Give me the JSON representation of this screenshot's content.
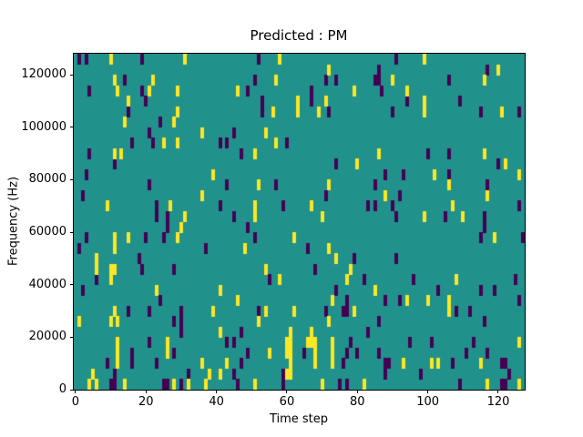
{
  "title": "Predicted : PM",
  "chart_data": {
    "type": "heatmap",
    "title": "Predicted : PM",
    "xlabel": "Time step",
    "ylabel": "Frequency (Hz)",
    "grid_cols": 128,
    "grid_rows": 32,
    "x_range": [
      -0.5,
      127.5
    ],
    "y_range_hz": [
      0,
      128000
    ],
    "x_ticks": [
      0,
      20,
      40,
      60,
      80,
      100,
      120
    ],
    "y_ticks": [
      0,
      20000,
      40000,
      60000,
      80000,
      100000,
      120000
    ],
    "grid_on": false,
    "legend": "none",
    "colors": {
      "mid": "#21918c",
      "low": "#440154",
      "high": "#fde725",
      "spine": "#000000",
      "background": "#ffffff"
    },
    "cell_note": "cells are [col,row] with col 0-127 left-to-right (time step) and row 0-31 top-to-bottom (row 0 = highest 4000 Hz frequency band); all other cells have the mid (teal) value",
    "cells_low": [
      [
        1,
        0
      ],
      [
        3,
        0
      ],
      [
        19,
        0
      ],
      [
        14,
        2
      ],
      [
        4,
        3
      ],
      [
        19,
        3
      ],
      [
        20,
        4
      ],
      [
        15,
        5
      ],
      [
        24,
        6
      ],
      [
        21,
        7
      ],
      [
        16,
        8
      ],
      [
        22,
        8
      ],
      [
        41,
        8
      ],
      [
        4,
        9
      ],
      [
        11,
        10
      ],
      [
        3,
        11
      ],
      [
        21,
        12
      ],
      [
        2,
        13
      ],
      [
        23,
        14
      ],
      [
        41,
        14
      ],
      [
        23,
        15
      ],
      [
        26,
        15
      ],
      [
        52,
        0
      ],
      [
        51,
        2
      ],
      [
        71,
        2
      ],
      [
        74,
        2
      ],
      [
        85,
        2
      ],
      [
        49,
        3
      ],
      [
        67,
        3
      ],
      [
        53,
        4
      ],
      [
        67,
        4
      ],
      [
        53,
        5
      ],
      [
        72,
        5
      ],
      [
        45,
        7
      ],
      [
        43,
        8
      ],
      [
        60,
        8
      ],
      [
        47,
        9
      ],
      [
        74,
        10
      ],
      [
        43,
        12
      ],
      [
        57,
        12
      ],
      [
        71,
        13
      ],
      [
        59,
        14
      ],
      [
        83,
        14
      ],
      [
        45,
        15
      ],
      [
        91,
        0
      ],
      [
        86,
        1
      ],
      [
        117,
        1
      ],
      [
        86,
        2
      ],
      [
        106,
        2
      ],
      [
        87,
        3
      ],
      [
        94,
        4
      ],
      [
        109,
        4
      ],
      [
        90,
        5
      ],
      [
        115,
        5
      ],
      [
        126,
        5
      ],
      [
        100,
        9
      ],
      [
        106,
        9
      ],
      [
        120,
        10
      ],
      [
        88,
        11
      ],
      [
        93,
        11
      ],
      [
        106,
        11
      ],
      [
        85,
        12
      ],
      [
        117,
        12
      ],
      [
        92,
        13
      ],
      [
        85,
        14
      ],
      [
        90,
        14
      ],
      [
        126,
        14
      ],
      [
        91,
        15
      ],
      [
        105,
        15
      ],
      [
        116,
        15
      ],
      [
        26,
        16
      ],
      [
        3,
        17
      ],
      [
        20,
        17
      ],
      [
        25,
        17
      ],
      [
        1,
        18
      ],
      [
        37,
        18
      ],
      [
        18,
        19
      ],
      [
        19,
        20
      ],
      [
        28,
        20
      ],
      [
        6,
        21
      ],
      [
        2,
        22
      ],
      [
        24,
        23
      ],
      [
        15,
        24
      ],
      [
        21,
        24
      ],
      [
        30,
        24
      ],
      [
        28,
        25
      ],
      [
        30,
        25
      ],
      [
        30,
        26
      ],
      [
        21,
        27
      ],
      [
        16,
        28
      ],
      [
        28,
        28
      ],
      [
        9,
        29
      ],
      [
        16,
        29
      ],
      [
        23,
        29
      ],
      [
        11,
        30
      ],
      [
        32,
        30
      ],
      [
        10,
        31
      ],
      [
        11,
        31
      ],
      [
        25,
        31
      ],
      [
        26,
        31
      ],
      [
        30,
        31
      ],
      [
        49,
        16
      ],
      [
        51,
        17
      ],
      [
        66,
        18
      ],
      [
        79,
        19
      ],
      [
        68,
        20
      ],
      [
        55,
        21
      ],
      [
        82,
        21
      ],
      [
        74,
        22
      ],
      [
        77,
        23
      ],
      [
        52,
        24
      ],
      [
        71,
        24
      ],
      [
        76,
        24
      ],
      [
        77,
        24
      ],
      [
        47,
        26
      ],
      [
        83,
        26
      ],
      [
        43,
        27
      ],
      [
        45,
        27
      ],
      [
        78,
        27
      ],
      [
        49,
        28
      ],
      [
        65,
        28
      ],
      [
        77,
        28
      ],
      [
        80,
        28
      ],
      [
        47,
        29
      ],
      [
        76,
        29
      ],
      [
        45,
        30
      ],
      [
        59,
        30
      ],
      [
        59,
        31
      ],
      [
        46,
        31
      ],
      [
        75,
        31
      ],
      [
        77,
        31
      ],
      [
        116,
        16
      ],
      [
        115,
        17
      ],
      [
        127,
        17
      ],
      [
        91,
        19
      ],
      [
        96,
        21
      ],
      [
        125,
        21
      ],
      [
        103,
        22
      ],
      [
        115,
        22
      ],
      [
        119,
        22
      ],
      [
        92,
        23
      ],
      [
        88,
        23
      ],
      [
        126,
        23
      ],
      [
        108,
        24
      ],
      [
        112,
        24
      ],
      [
        86,
        25
      ],
      [
        116,
        25
      ],
      [
        95,
        27
      ],
      [
        101,
        27
      ],
      [
        113,
        27
      ],
      [
        86,
        28
      ],
      [
        111,
        28
      ],
      [
        117,
        28
      ],
      [
        88,
        29
      ],
      [
        89,
        29
      ],
      [
        107,
        29
      ],
      [
        121,
        29
      ],
      [
        122,
        29
      ],
      [
        88,
        30
      ],
      [
        98,
        30
      ],
      [
        123,
        30
      ],
      [
        109,
        31
      ],
      [
        121,
        31
      ],
      [
        122,
        31
      ]
    ],
    "cells_high": [
      [
        10,
        0
      ],
      [
        31,
        0
      ],
      [
        11,
        2
      ],
      [
        22,
        2
      ],
      [
        12,
        3
      ],
      [
        21,
        3
      ],
      [
        29,
        3
      ],
      [
        15,
        4
      ],
      [
        29,
        5
      ],
      [
        14,
        6
      ],
      [
        28,
        6
      ],
      [
        36,
        7
      ],
      [
        25,
        8
      ],
      [
        29,
        8
      ],
      [
        11,
        9
      ],
      [
        13,
        9
      ],
      [
        39,
        11
      ],
      [
        36,
        13
      ],
      [
        9,
        14
      ],
      [
        27,
        14
      ],
      [
        31,
        15
      ],
      [
        58,
        0
      ],
      [
        72,
        1
      ],
      [
        57,
        2
      ],
      [
        46,
        3
      ],
      [
        79,
        3
      ],
      [
        71,
        4
      ],
      [
        63,
        4
      ],
      [
        56,
        5
      ],
      [
        63,
        5
      ],
      [
        69,
        5
      ],
      [
        54,
        7
      ],
      [
        57,
        8
      ],
      [
        51,
        9
      ],
      [
        80,
        10
      ],
      [
        52,
        12
      ],
      [
        72,
        12
      ],
      [
        51,
        14
      ],
      [
        67,
        14
      ],
      [
        70,
        15
      ],
      [
        51,
        15
      ],
      [
        99,
        0
      ],
      [
        120,
        1
      ],
      [
        90,
        2
      ],
      [
        116,
        2
      ],
      [
        94,
        3
      ],
      [
        99,
        4
      ],
      [
        99,
        5
      ],
      [
        121,
        5
      ],
      [
        86,
        9
      ],
      [
        116,
        9
      ],
      [
        122,
        10
      ],
      [
        126,
        11
      ],
      [
        102,
        11
      ],
      [
        106,
        12
      ],
      [
        88,
        13
      ],
      [
        117,
        13
      ],
      [
        107,
        14
      ],
      [
        99,
        15
      ],
      [
        110,
        15
      ],
      [
        30,
        16
      ],
      [
        11,
        17
      ],
      [
        15,
        17
      ],
      [
        29,
        17
      ],
      [
        11,
        18
      ],
      [
        6,
        19
      ],
      [
        6,
        20
      ],
      [
        10,
        20
      ],
      [
        11,
        20
      ],
      [
        10,
        21
      ],
      [
        23,
        22
      ],
      [
        41,
        22
      ],
      [
        39,
        24
      ],
      [
        11,
        24
      ],
      [
        12,
        25
      ],
      [
        1,
        25
      ],
      [
        10,
        25
      ],
      [
        41,
        26
      ],
      [
        12,
        27
      ],
      [
        26,
        27
      ],
      [
        12,
        28
      ],
      [
        26,
        28
      ],
      [
        12,
        29
      ],
      [
        36,
        29
      ],
      [
        5,
        30
      ],
      [
        38,
        30
      ],
      [
        41,
        30
      ],
      [
        4,
        31
      ],
      [
        6,
        31
      ],
      [
        14,
        31
      ],
      [
        28,
        31
      ],
      [
        32,
        31
      ],
      [
        37,
        31
      ],
      [
        62,
        17
      ],
      [
        48,
        18
      ],
      [
        72,
        18
      ],
      [
        74,
        19
      ],
      [
        54,
        20
      ],
      [
        78,
        20
      ],
      [
        58,
        21
      ],
      [
        77,
        21
      ],
      [
        85,
        22
      ],
      [
        46,
        23
      ],
      [
        73,
        23
      ],
      [
        54,
        24
      ],
      [
        62,
        24
      ],
      [
        79,
        24
      ],
      [
        52,
        25
      ],
      [
        72,
        25
      ],
      [
        61,
        26
      ],
      [
        67,
        26
      ],
      [
        60,
        27
      ],
      [
        61,
        27
      ],
      [
        66,
        27
      ],
      [
        67,
        27
      ],
      [
        68,
        27
      ],
      [
        73,
        27
      ],
      [
        55,
        28
      ],
      [
        60,
        28
      ],
      [
        61,
        28
      ],
      [
        68,
        28
      ],
      [
        73,
        28
      ],
      [
        43,
        29
      ],
      [
        61,
        29
      ],
      [
        68,
        29
      ],
      [
        73,
        29
      ],
      [
        60,
        30
      ],
      [
        61,
        30
      ],
      [
        70,
        31
      ],
      [
        51,
        31
      ],
      [
        82,
        31
      ],
      [
        119,
        17
      ],
      [
        108,
        21
      ],
      [
        100,
        23
      ],
      [
        94,
        23
      ],
      [
        106,
        23
      ],
      [
        106,
        24
      ],
      [
        126,
        27
      ],
      [
        93,
        29
      ],
      [
        101,
        29
      ],
      [
        103,
        29
      ],
      [
        115,
        29
      ],
      [
        117,
        31
      ],
      [
        126,
        31
      ]
    ]
  }
}
